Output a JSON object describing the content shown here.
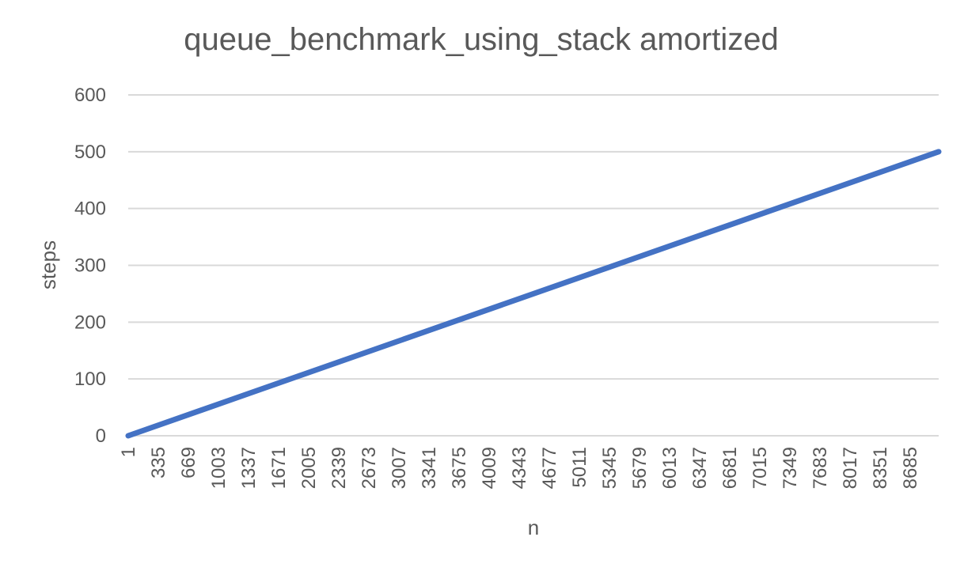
{
  "chart_data": {
    "type": "line",
    "title": "queue_benchmark_using_stack amortized",
    "xlabel": "n",
    "ylabel": "steps",
    "ylim": [
      0,
      600
    ],
    "yticks": [
      "0",
      "100",
      "200",
      "300",
      "400",
      "500",
      "600"
    ],
    "xlim": [
      1,
      9000
    ],
    "xticks": [
      "1",
      "335",
      "669",
      "1003",
      "1337",
      "1671",
      "2005",
      "2339",
      "2673",
      "3007",
      "3341",
      "3675",
      "4009",
      "4343",
      "4677",
      "5011",
      "5345",
      "5679",
      "6013",
      "6347",
      "6681",
      "7015",
      "7349",
      "7683",
      "8017",
      "8351",
      "8685"
    ],
    "grid": true,
    "legend": "none",
    "series": [
      {
        "color": "#4472c4",
        "x": [
          1,
          9000
        ],
        "y": [
          0,
          500
        ]
      }
    ]
  }
}
